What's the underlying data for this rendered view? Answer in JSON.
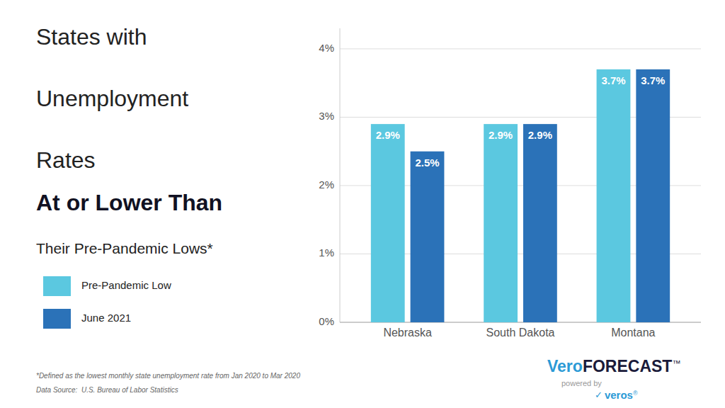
{
  "chart_data": {
    "type": "bar",
    "title": [
      "States with",
      "Unemployment",
      "Rates"
    ],
    "subtitle": [
      "At or Lower Than",
      "Their Pre-Pandemic Lows*"
    ],
    "categories": [
      "Nebraska",
      "South Dakota",
      "Montana"
    ],
    "series": [
      {
        "name": "Pre-Pandemic Low",
        "color": "#5BC8E0",
        "values": [
          2.9,
          2.9,
          3.7
        ],
        "value_labels": [
          "2.9%",
          "2.9%",
          "3.7%"
        ]
      },
      {
        "name": "June 2021",
        "color": "#2B72B8",
        "values": [
          2.5,
          2.9,
          3.7
        ],
        "value_labels": [
          "2.5%",
          "2.9%",
          "3.7%"
        ]
      }
    ],
    "ylim": [
      0,
      4.3
    ],
    "yticks": [
      {
        "value": 0,
        "label": "0%"
      },
      {
        "value": 1,
        "label": "1%"
      },
      {
        "value": 2,
        "label": "2%"
      },
      {
        "value": 3,
        "label": "3%"
      },
      {
        "value": 4,
        "label": "4%"
      }
    ],
    "grid": true,
    "legend": "lower left",
    "data_labels": true,
    "annotations": [
      "*Defined as the lowest monthly state unemployment rate from Jan 2020 to Mar 2020",
      "Data Source:  U.S. Bureau of Labor Statistics",
      "Vero",
      "FORECAST",
      "™",
      "powered by",
      "✓",
      "veros",
      "®"
    ]
  }
}
